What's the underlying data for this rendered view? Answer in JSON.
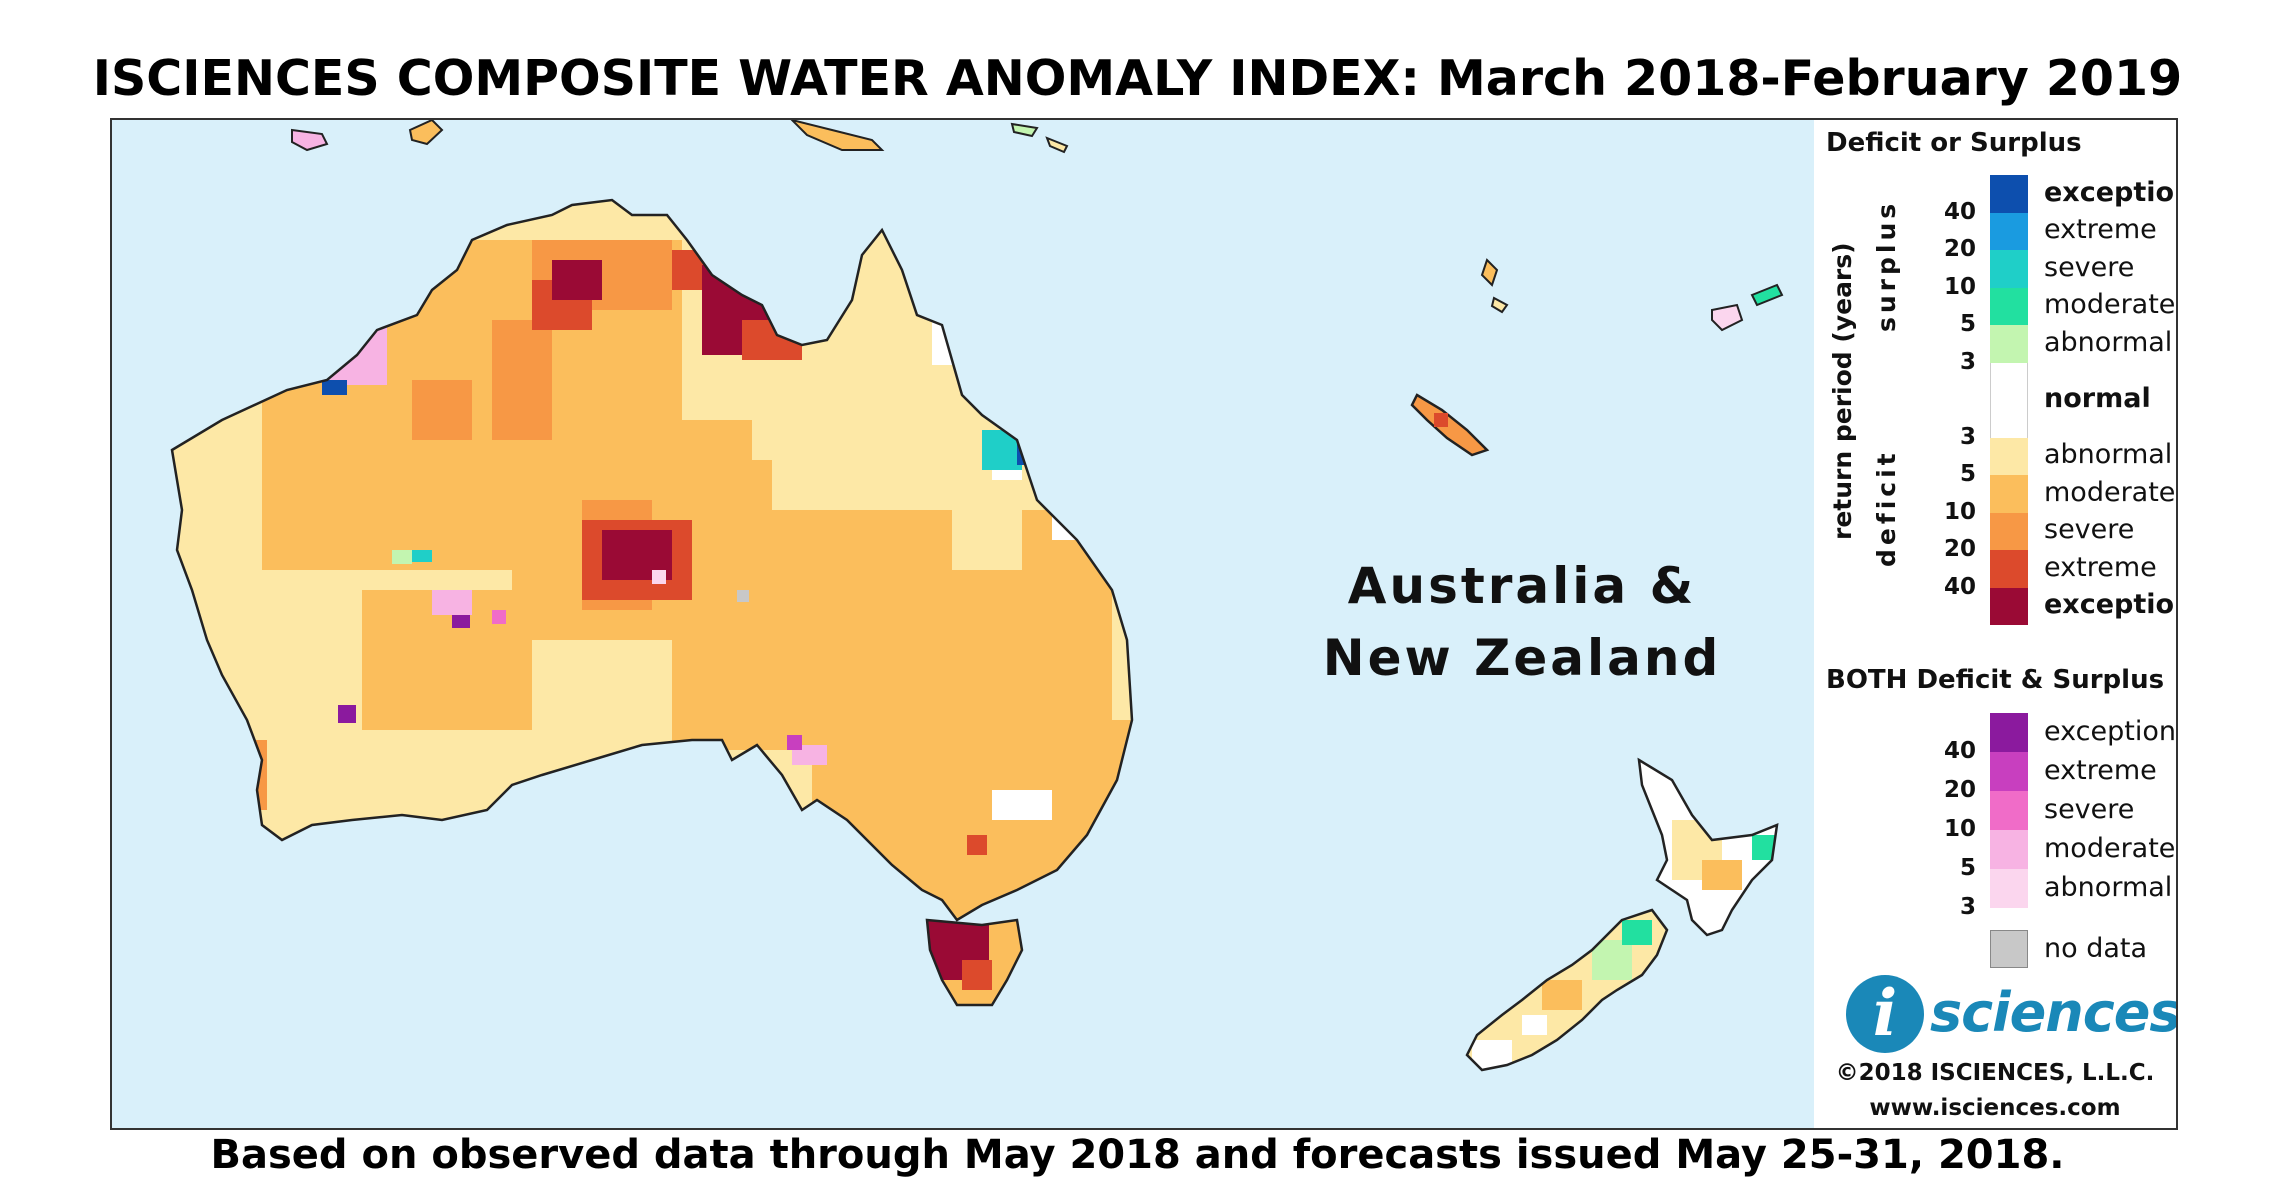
{
  "title": "ISCIENCES COMPOSITE WATER ANOMALY INDEX: March 2018-February 2019",
  "footer": "Based on observed data through May 2018 and forecasts issued May 25-31, 2018.",
  "map": {
    "region_label_line1": "Australia &",
    "region_label_line2": "New Zealand",
    "colors": {
      "ocean": "#d9f0fa",
      "land_abnormal_deficit": "#fde8a6",
      "land_moderate_deficit": "#fbbe5c",
      "land_severe_deficit": "#f79845",
      "land_extreme_deficit": "#dc4a2c",
      "land_exceptional_deficit": "#9a0a35",
      "coast": "#222222"
    }
  },
  "legend": {
    "deficit_surplus_title": "Deficit or Surplus",
    "axis_label": "return period (years)",
    "surplus_label": "surplus",
    "deficit_label": "deficit",
    "surplus_items": [
      {
        "label": "exceptional",
        "color": "#0d4fae",
        "bold": true
      },
      {
        "label": "extreme",
        "color": "#1a9be0",
        "bold": false
      },
      {
        "label": "severe",
        "color": "#1fcfc8",
        "bold": false
      },
      {
        "label": "moderate",
        "color": "#22e0a0",
        "bold": false
      },
      {
        "label": "abnormal",
        "color": "#c3f5b0",
        "bold": false
      }
    ],
    "normal_item": {
      "label": "normal",
      "color": "#ffffff",
      "bold": true
    },
    "deficit_items": [
      {
        "label": "abnormal",
        "color": "#fde8a6",
        "bold": false
      },
      {
        "label": "moderate",
        "color": "#fbbe5c",
        "bold": false
      },
      {
        "label": "severe",
        "color": "#f79845",
        "bold": false
      },
      {
        "label": "extreme",
        "color": "#dc4a2c",
        "bold": false
      },
      {
        "label": "exceptional",
        "color": "#9a0a35",
        "bold": true
      }
    ],
    "surplus_ticks": [
      "40",
      "20",
      "10",
      "5",
      "3"
    ],
    "deficit_ticks": [
      "3",
      "5",
      "10",
      "20",
      "40"
    ],
    "both_title": "BOTH Deficit & Surplus",
    "both_items": [
      {
        "label": "exceptional",
        "color": "#8b1a9e"
      },
      {
        "label": "extreme",
        "color": "#c83fbf"
      },
      {
        "label": "severe",
        "color": "#f06cc8"
      },
      {
        "label": "moderate",
        "color": "#f7b3e3"
      },
      {
        "label": "abnormal",
        "color": "#fbd6ee"
      }
    ],
    "both_ticks": [
      "40",
      "20",
      "10",
      "5",
      "3"
    ],
    "no_data": {
      "label": "no data",
      "color": "#c8c8c8"
    },
    "logo_letter": "i",
    "logo_text": "sciences",
    "copyright": "©2018 ISCIENCES, L.L.C.",
    "website": "www.isciences.com"
  }
}
